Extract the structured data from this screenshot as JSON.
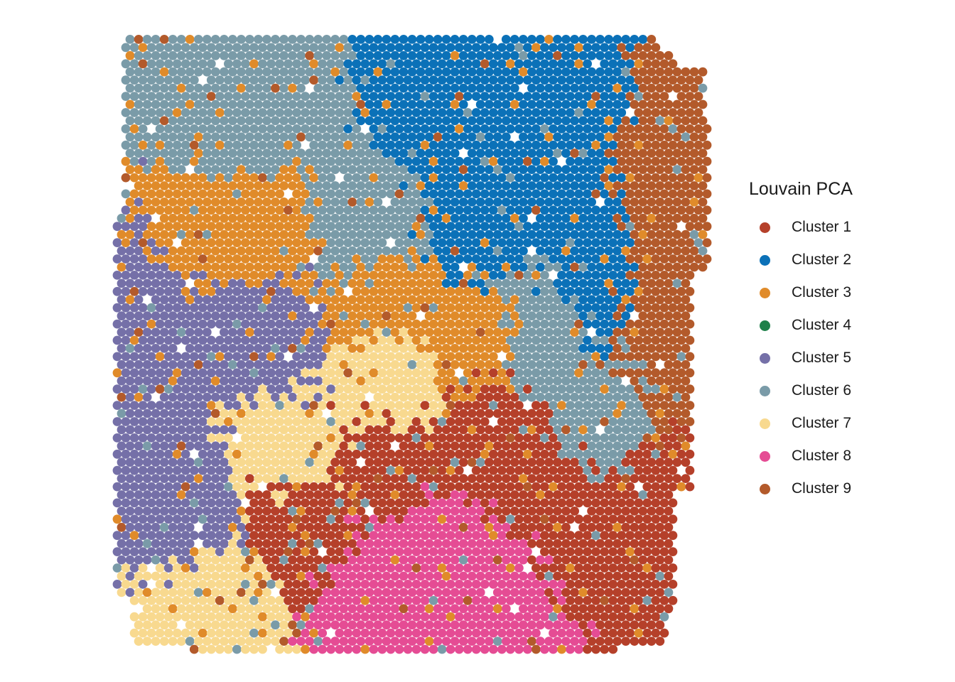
{
  "chart_data": {
    "type": "scatter",
    "title": "",
    "xlabel": "",
    "ylabel": "",
    "grid": false,
    "axes_visible": false,
    "legend_position": "right",
    "legend": {
      "title": "Louvain PCA",
      "entries": [
        {
          "name": "Cluster 1",
          "color": "#B5402A"
        },
        {
          "name": "Cluster 2",
          "color": "#0B71B8"
        },
        {
          "name": "Cluster 3",
          "color": "#E08B2A"
        },
        {
          "name": "Cluster 4",
          "color": "#1E8049"
        },
        {
          "name": "Cluster 5",
          "color": "#7570A8"
        },
        {
          "name": "Cluster 6",
          "color": "#7A9BA8"
        },
        {
          "name": "Cluster 7",
          "color": "#F8D98F"
        },
        {
          "name": "Cluster 8",
          "color": "#E54C94"
        },
        {
          "name": "Cluster 9",
          "color": "#B35A2B"
        }
      ]
    },
    "grid_spots": {
      "columns": 70,
      "rows": 77
    },
    "region_centers": [
      {
        "cluster": "Cluster 1",
        "x": 0.62,
        "y": 0.65
      },
      {
        "cluster": "Cluster 1",
        "x": 0.31,
        "y": 0.8
      },
      {
        "cluster": "Cluster 1",
        "x": 0.92,
        "y": 0.72
      },
      {
        "cluster": "Cluster 1",
        "x": 0.48,
        "y": 0.7
      },
      {
        "cluster": "Cluster 1",
        "x": 0.8,
        "y": 0.8
      },
      {
        "cluster": "Cluster 2",
        "x": 0.55,
        "y": 0.13
      },
      {
        "cluster": "Cluster 2",
        "x": 0.72,
        "y": 0.15
      },
      {
        "cluster": "Cluster 2",
        "x": 0.8,
        "y": 0.4
      },
      {
        "cluster": "Cluster 2",
        "x": 0.62,
        "y": 0.3
      },
      {
        "cluster": "Cluster 3",
        "x": 0.25,
        "y": 0.32
      },
      {
        "cluster": "Cluster 3",
        "x": 0.45,
        "y": 0.44
      },
      {
        "cluster": "Cluster 3",
        "x": 0.6,
        "y": 0.5
      },
      {
        "cluster": "Cluster 3",
        "x": 0.08,
        "y": 0.33
      },
      {
        "cluster": "Cluster 5",
        "x": 0.1,
        "y": 0.55
      },
      {
        "cluster": "Cluster 5",
        "x": 0.25,
        "y": 0.5
      },
      {
        "cluster": "Cluster 5",
        "x": 0.12,
        "y": 0.78
      },
      {
        "cluster": "Cluster 5",
        "x": 0.05,
        "y": 0.38
      },
      {
        "cluster": "Cluster 6",
        "x": 0.12,
        "y": 0.1
      },
      {
        "cluster": "Cluster 6",
        "x": 0.25,
        "y": 0.15
      },
      {
        "cluster": "Cluster 6",
        "x": 0.42,
        "y": 0.32
      },
      {
        "cluster": "Cluster 6",
        "x": 0.86,
        "y": 0.62
      },
      {
        "cluster": "Cluster 6",
        "x": 0.72,
        "y": 0.48
      },
      {
        "cluster": "Cluster 7",
        "x": 0.16,
        "y": 0.92
      },
      {
        "cluster": "Cluster 7",
        "x": 0.28,
        "y": 0.68
      },
      {
        "cluster": "Cluster 7",
        "x": 0.46,
        "y": 0.56
      },
      {
        "cluster": "Cluster 8",
        "x": 0.53,
        "y": 0.83
      },
      {
        "cluster": "Cluster 8",
        "x": 0.44,
        "y": 0.91
      },
      {
        "cluster": "Cluster 8",
        "x": 0.62,
        "y": 0.93
      },
      {
        "cluster": "Cluster 9",
        "x": 0.97,
        "y": 0.22
      },
      {
        "cluster": "Cluster 9",
        "x": 0.95,
        "y": 0.4
      },
      {
        "cluster": "Cluster 9",
        "x": 0.92,
        "y": 0.58
      }
    ]
  }
}
